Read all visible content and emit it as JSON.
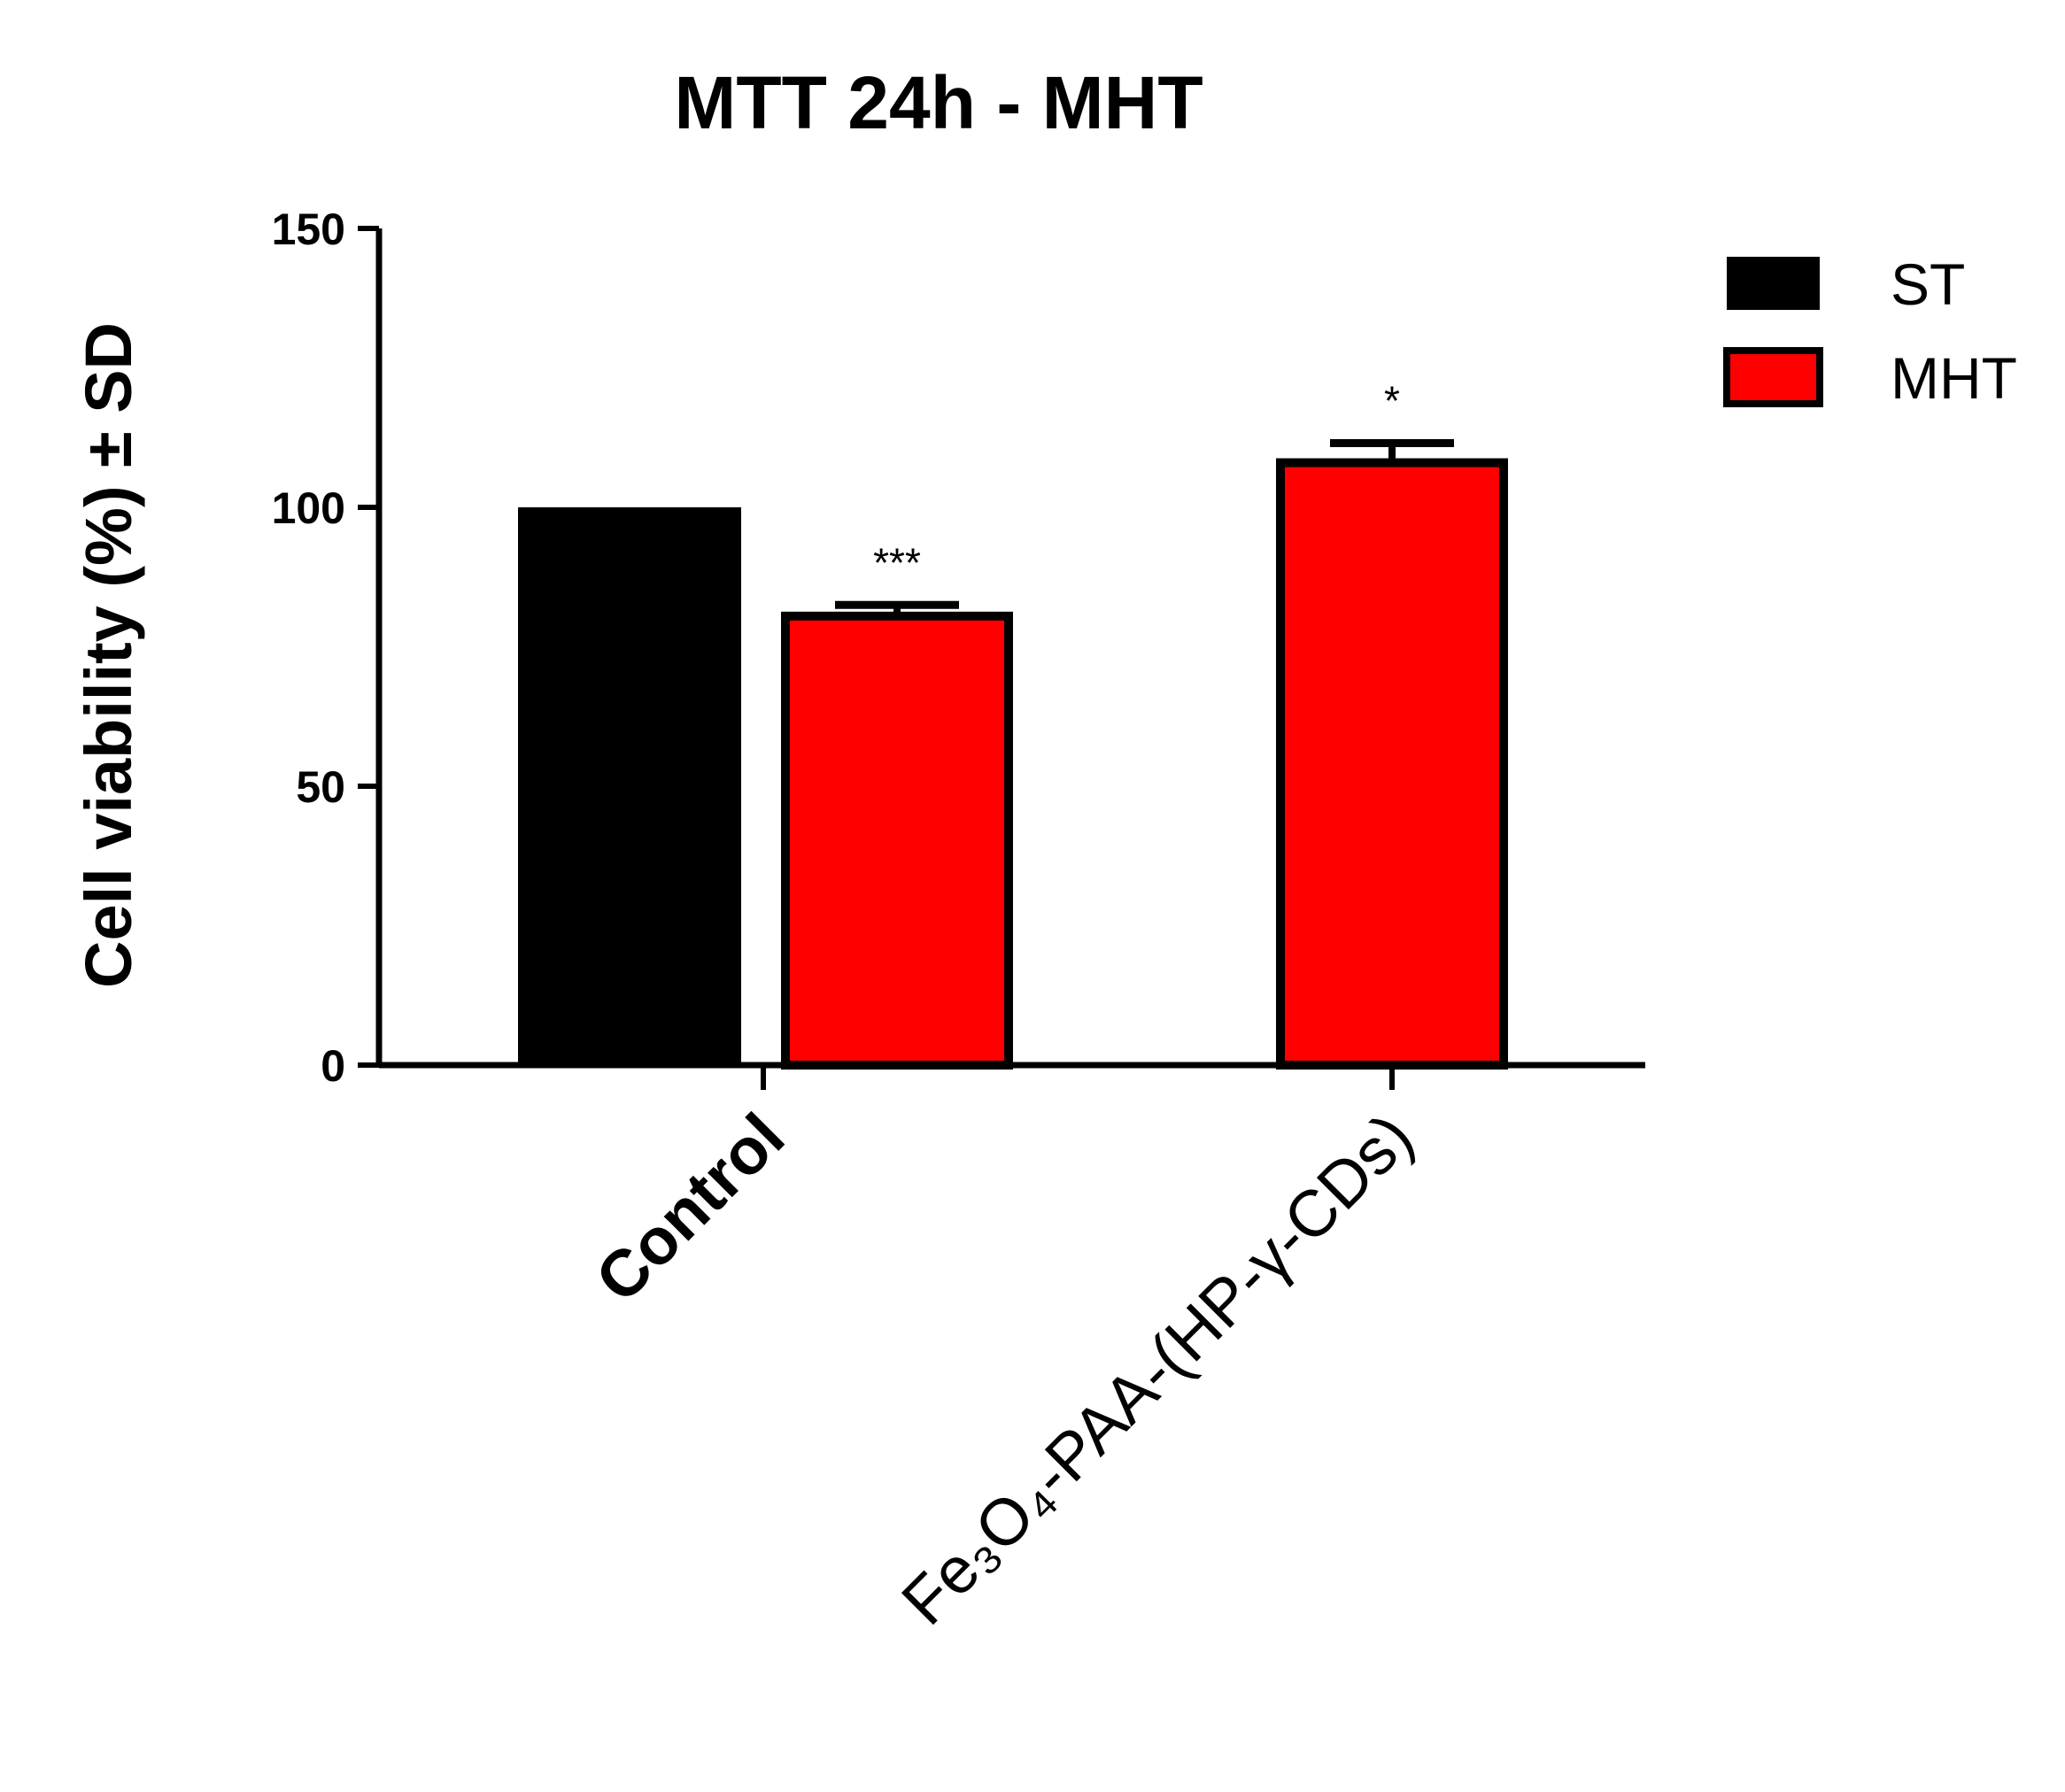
{
  "chart_data": {
    "type": "bar",
    "title": "MTT 24h - MHT",
    "ylabel": "Cell viability (%)  ± SD",
    "xlabel": "",
    "ylim": [
      0,
      150
    ],
    "yticks": [
      0,
      50,
      100,
      150
    ],
    "categories": [
      {
        "label": "Control",
        "style": "bold"
      },
      {
        "label": "Fe₃O₄-PAA-(HP-γ-CDs)",
        "style": "normal"
      }
    ],
    "series": [
      {
        "name": "ST",
        "color": "#000000",
        "values": [
          100,
          null
        ],
        "errors": [
          0,
          null
        ]
      },
      {
        "name": "MHT",
        "color": "#ff0000",
        "values": [
          80.5,
          108
        ],
        "errors": [
          2,
          3.5
        ]
      }
    ],
    "annotations": [
      {
        "category": 0,
        "series": 1,
        "text": "***"
      },
      {
        "category": 1,
        "series": 1,
        "text": "*"
      }
    ],
    "legend_position": "top-right",
    "grid": false
  }
}
